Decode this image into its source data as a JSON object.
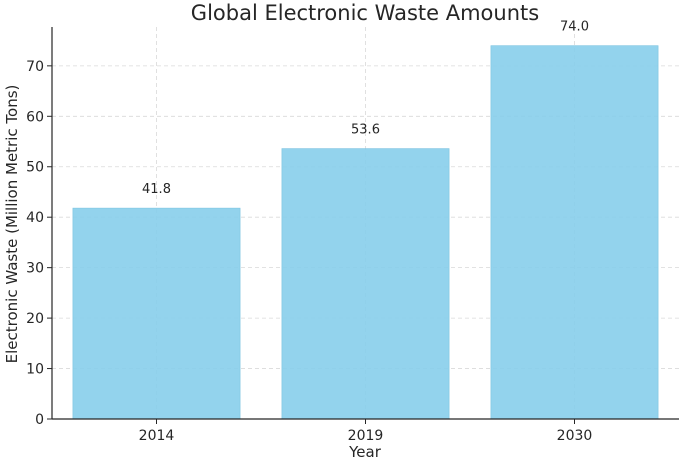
{
  "chart_data": {
    "type": "bar",
    "title": "Global Electronic Waste Amounts",
    "xlabel": "Year",
    "ylabel": "Electronic Waste (Million Metric Tons)",
    "categories": [
      "2014",
      "2019",
      "2030"
    ],
    "values": [
      41.8,
      53.6,
      74.0
    ],
    "data_labels": [
      "41.8",
      "53.6",
      "74.0"
    ],
    "ylim": [
      0,
      77.7
    ],
    "yticks": [
      0,
      10,
      20,
      30,
      40,
      50,
      60,
      70
    ],
    "grid": true,
    "bar_color": "#87CEEB"
  }
}
